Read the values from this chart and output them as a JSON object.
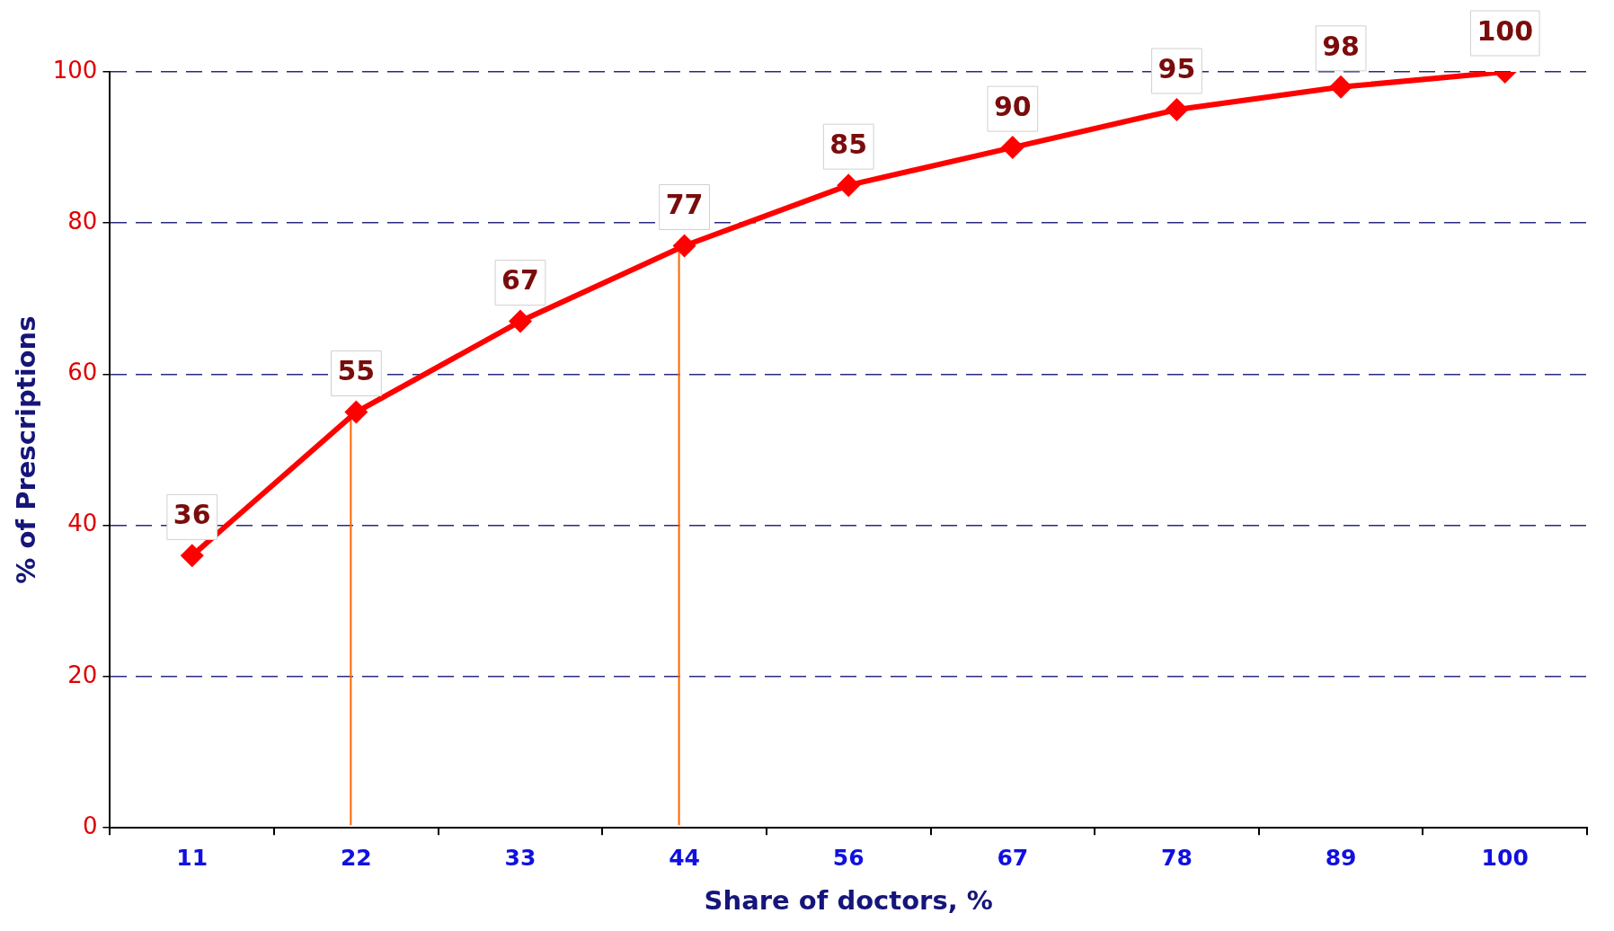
{
  "chart_data": {
    "type": "line",
    "xlabel": "Share of doctors, %",
    "ylabel": "% of Prescriptions",
    "categories": [
      "11",
      "22",
      "33",
      "44",
      "56",
      "67",
      "78",
      "89",
      "100"
    ],
    "series": [
      {
        "color": "#ff0000",
        "values": [
          36,
          55,
          67,
          77,
          85,
          90,
          95,
          98,
          100
        ]
      }
    ],
    "ylim": [
      0,
      100
    ],
    "yticks": [
      0,
      20,
      40,
      60,
      80,
      100
    ],
    "grid": "y",
    "legend": false,
    "marker": "diamond",
    "line_style": "solid",
    "data_labels": true,
    "ref_lines": [
      {
        "axis": "x",
        "value": "22",
        "color": "#ff6600"
      },
      {
        "axis": "x",
        "value": "44",
        "color": "#ff6600"
      }
    ]
  }
}
